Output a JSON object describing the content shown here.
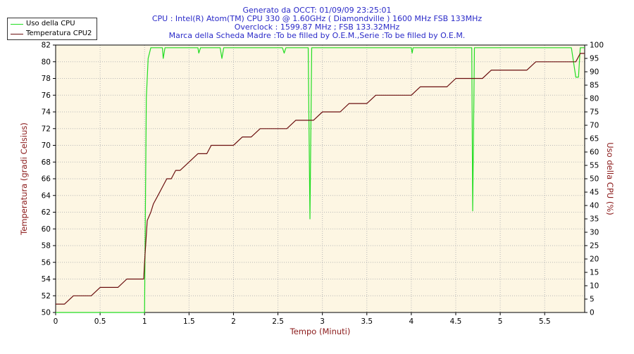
{
  "header": {
    "line1": "Generato da OCCT: 01/09/09 23:25:01",
    "line2": "CPU : Intel(R) Atom(TM) CPU 330 @ 1.60GHz ( Diamondville ) 1600 MHz FSB 133MHz",
    "line3": "Overclock : 1599.87 MHz ; FSB 133.32MHz",
    "line4": "Marca della Scheda Madre :To be filled by O.E.M.,Serie :To be filled by O.E.M."
  },
  "colors": {
    "temperature": "#6b0f0f",
    "cpu_usage": "#22dd22",
    "plot_bg": "#fdf6e3",
    "grid": "#b8b8b8",
    "title": "#2a2ac8",
    "axis_label": "#8b1a1a"
  },
  "chart_data": {
    "type": "line",
    "xlabel": "Tempo (Minuti)",
    "ylabel": "Temperatura (gradi Celsius)",
    "y2label": "Uso della CPU (%)",
    "xlim": [
      0,
      5.95
    ],
    "ylim": [
      50,
      82
    ],
    "y2lim": [
      0,
      100
    ],
    "x_ticks": [
      "0",
      "0.5",
      "1",
      "1.5",
      "2",
      "2.5",
      "3",
      "3.5",
      "4",
      "4.5",
      "5",
      "5.5"
    ],
    "y_ticks": [
      "50",
      "52",
      "54",
      "56",
      "58",
      "60",
      "62",
      "64",
      "66",
      "68",
      "70",
      "72",
      "74",
      "76",
      "78",
      "80",
      "82"
    ],
    "y2_ticks": [
      "0",
      "5",
      "10",
      "15",
      "20",
      "25",
      "30",
      "35",
      "40",
      "45",
      "50",
      "55",
      "60",
      "65",
      "70",
      "75",
      "80",
      "85",
      "90",
      "95",
      "100"
    ],
    "grid": true,
    "legend_position": "top-left",
    "series": [
      {
        "name": "Uso della CPU",
        "axis": "right",
        "x": [
          0,
          0.99,
          1.0,
          1.02,
          1.04,
          1.07,
          1.1,
          1.2,
          1.21,
          1.23,
          1.3,
          1.4,
          1.6,
          1.61,
          1.63,
          1.85,
          1.87,
          1.89,
          2.0,
          2.55,
          2.57,
          2.59,
          2.8,
          2.84,
          2.86,
          2.88,
          2.92,
          3.0,
          4.0,
          4.01,
          4.02,
          4.6,
          4.68,
          4.69,
          4.71,
          4.74,
          5.0,
          5.5,
          5.8,
          5.85,
          5.88,
          5.9,
          5.95
        ],
        "y": [
          0,
          0,
          0,
          80,
          95,
          99,
          99,
          99,
          95,
          99,
          99,
          99,
          99,
          97,
          99,
          99,
          95,
          99,
          99,
          99,
          97,
          99,
          99,
          99,
          35,
          99,
          99,
          99,
          99,
          97,
          99,
          99,
          99,
          38,
          99,
          99,
          99,
          99,
          99,
          88,
          88,
          99,
          99
        ]
      },
      {
        "name": "Temperatura CPU2",
        "axis": "left",
        "x": [
          0,
          0.1,
          0.2,
          0.3,
          0.4,
          0.5,
          0.6,
          0.7,
          0.8,
          0.9,
          0.99,
          1.0,
          1.03,
          1.07,
          1.1,
          1.15,
          1.2,
          1.25,
          1.3,
          1.35,
          1.4,
          1.5,
          1.6,
          1.7,
          1.75,
          1.8,
          2.0,
          2.1,
          2.2,
          2.3,
          2.4,
          2.5,
          2.6,
          2.7,
          2.8,
          2.9,
          3.0,
          3.1,
          3.2,
          3.3,
          3.4,
          3.5,
          3.6,
          3.7,
          3.8,
          3.9,
          4.0,
          4.1,
          4.2,
          4.3,
          4.4,
          4.5,
          4.6,
          4.7,
          4.8,
          4.9,
          5.0,
          5.1,
          5.2,
          5.3,
          5.4,
          5.5,
          5.6,
          5.7,
          5.8,
          5.85,
          5.9,
          5.95
        ],
        "y": [
          51,
          51,
          52,
          52,
          52,
          53,
          53,
          53,
          54,
          54,
          54,
          56,
          61,
          62,
          63,
          64,
          65,
          66,
          66,
          67,
          67,
          68,
          69,
          69,
          70,
          70,
          70,
          71,
          71,
          72,
          72,
          72,
          72,
          73,
          73,
          73,
          74,
          74,
          74,
          75,
          75,
          75,
          76,
          76,
          76,
          76,
          76,
          77,
          77,
          77,
          77,
          78,
          78,
          78,
          78,
          79,
          79,
          79,
          79,
          79,
          80,
          80,
          80,
          80,
          80,
          80,
          81,
          81
        ]
      }
    ]
  }
}
